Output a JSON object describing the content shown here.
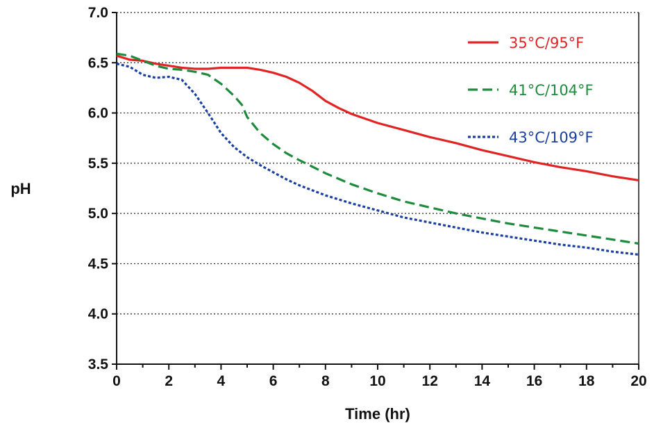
{
  "chart_data": {
    "type": "line",
    "title": "",
    "xlabel": "Time (hr)",
    "ylabel": "pH",
    "xlim": [
      0,
      20
    ],
    "ylim": [
      3.5,
      7.0
    ],
    "xticks": [
      0,
      2,
      4,
      6,
      8,
      10,
      12,
      14,
      16,
      18,
      20
    ],
    "xtick_labels": [
      "0",
      "2",
      "4",
      "6",
      "8",
      "10",
      "12",
      "14",
      "16",
      "18",
      "20"
    ],
    "yticks": [
      3.5,
      4.0,
      4.5,
      5.0,
      5.5,
      6.0,
      6.5,
      7.0
    ],
    "ytick_labels": [
      "3.5",
      "4.0",
      "4.5",
      "5.0",
      "5.5",
      "6.0",
      "6.5",
      "7.0"
    ],
    "grid": "horizontal dotted",
    "legend_position": "top-right",
    "series": [
      {
        "name": "35°C/95°F",
        "color": "#e02424",
        "style": "solid",
        "x": [
          0,
          0.5,
          1,
          1.5,
          2,
          2.5,
          3,
          3.5,
          4,
          4.5,
          5,
          5.5,
          6,
          6.5,
          7,
          7.5,
          8,
          8.5,
          9,
          10,
          11,
          12,
          13,
          14,
          15,
          16,
          17,
          18,
          19,
          20
        ],
        "y": [
          6.57,
          6.53,
          6.52,
          6.49,
          6.47,
          6.45,
          6.44,
          6.44,
          6.45,
          6.45,
          6.45,
          6.43,
          6.4,
          6.36,
          6.3,
          6.22,
          6.12,
          6.05,
          5.99,
          5.9,
          5.83,
          5.76,
          5.7,
          5.63,
          5.57,
          5.51,
          5.46,
          5.42,
          5.37,
          5.33
        ]
      },
      {
        "name": "41°C/104°F",
        "color": "#1e8a3c",
        "style": "dashed",
        "x": [
          0,
          0.5,
          1,
          1.5,
          2,
          2.5,
          3,
          3.5,
          4,
          4.5,
          4.8,
          5,
          5.5,
          6,
          6.5,
          7,
          8,
          9,
          10,
          11,
          12,
          13,
          14,
          15,
          16,
          17,
          18,
          19,
          20
        ],
        "y": [
          6.59,
          6.57,
          6.52,
          6.47,
          6.44,
          6.43,
          6.41,
          6.38,
          6.29,
          6.17,
          6.08,
          5.96,
          5.8,
          5.69,
          5.6,
          5.53,
          5.4,
          5.29,
          5.2,
          5.12,
          5.06,
          5.0,
          4.95,
          4.9,
          4.86,
          4.82,
          4.78,
          4.74,
          4.7
        ]
      },
      {
        "name": "43°C/109°F",
        "color": "#1a3fa0",
        "style": "dotted",
        "x": [
          0,
          0.5,
          1,
          1.5,
          2,
          2.5,
          3,
          3.5,
          3.8,
          4,
          4.5,
          5,
          5.5,
          6,
          6.5,
          7,
          8,
          9,
          10,
          11,
          12,
          13,
          14,
          15,
          16,
          17,
          18,
          19,
          20
        ],
        "y": [
          6.49,
          6.46,
          6.38,
          6.35,
          6.36,
          6.33,
          6.19,
          6.0,
          5.88,
          5.8,
          5.66,
          5.56,
          5.48,
          5.41,
          5.34,
          5.28,
          5.18,
          5.1,
          5.03,
          4.96,
          4.91,
          4.86,
          4.81,
          4.77,
          4.73,
          4.69,
          4.66,
          4.62,
          4.59
        ]
      }
    ]
  }
}
